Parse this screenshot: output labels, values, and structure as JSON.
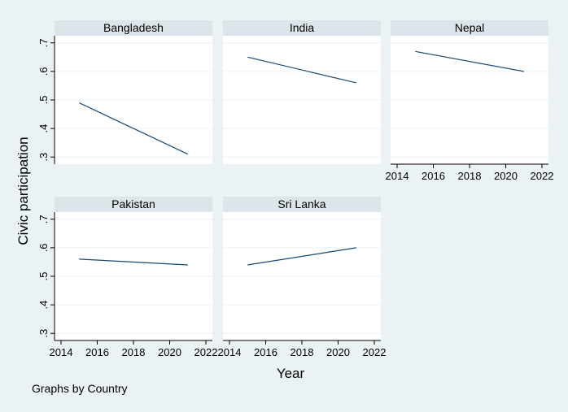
{
  "chart_data": {
    "type": "line",
    "xlabel": "Year",
    "ylabel": "Civic participation",
    "note": "Graphs by Country",
    "xlim": [
      2014,
      2022
    ],
    "ylim": [
      0.275,
      0.725
    ],
    "x_ticks": [
      2014,
      2016,
      2018,
      2020,
      2022
    ],
    "y_ticks": [
      0.3,
      0.4,
      0.5,
      0.6,
      0.7
    ],
    "y_tick_labels": [
      ".3",
      ".4",
      ".5",
      ".6",
      ".7"
    ],
    "colors": {
      "background": "#eaf2f3",
      "panel": "#ffffff",
      "strip": "#dce6ea",
      "line": "#1a476f",
      "grid": "#eaf2f3",
      "axis": "#000000"
    },
    "panels": [
      {
        "title": "Bangladesh",
        "x": [
          2015,
          2021
        ],
        "y": [
          0.49,
          0.31
        ]
      },
      {
        "title": "India",
        "x": [
          2015,
          2021
        ],
        "y": [
          0.65,
          0.56
        ]
      },
      {
        "title": "Nepal",
        "x": [
          2015,
          2021
        ],
        "y": [
          0.67,
          0.6
        ]
      },
      {
        "title": "Pakistan",
        "x": [
          2015,
          2021
        ],
        "y": [
          0.56,
          0.54
        ]
      },
      {
        "title": "Sri Lanka",
        "x": [
          2015,
          2021
        ],
        "y": [
          0.54,
          0.6
        ]
      }
    ]
  }
}
